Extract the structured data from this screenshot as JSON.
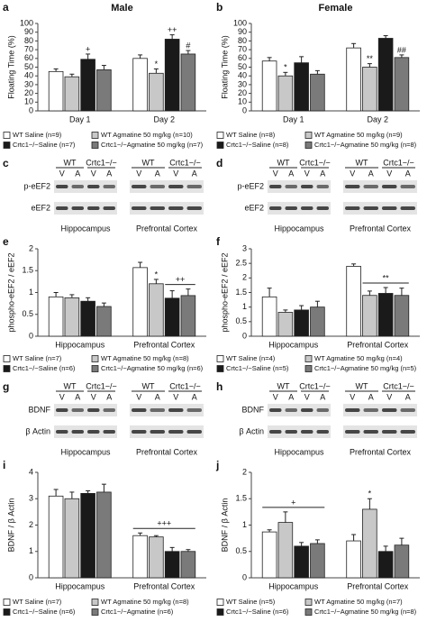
{
  "chart_data": [
    {
      "type": "bar",
      "panel": "a",
      "title": "Male",
      "ylabel": "Floating Time (%)",
      "categories": [
        "Day 1",
        "Day 2"
      ],
      "ylim": [
        0,
        100
      ],
      "yticks": [
        0,
        10,
        20,
        30,
        40,
        50,
        60,
        70,
        80,
        90,
        100
      ],
      "series": [
        {
          "name": "WT Saline (n=9)",
          "color": "#ffffff",
          "values": [
            45,
            60
          ],
          "errors": [
            3,
            4
          ]
        },
        {
          "name": "WT Agmatine 50 mg/kg (n=10)",
          "color": "#c8c8c8",
          "values": [
            39,
            43
          ],
          "errors": [
            3,
            5
          ]
        },
        {
          "name": "Crtc1−/−Saline (n=7)",
          "color": "#1a1a1a",
          "values": [
            59,
            82
          ],
          "errors": [
            6,
            5
          ]
        },
        {
          "name": "Crtc1−/−Agmatine 50 mg/kg (n=7)",
          "color": "#7a7a7a",
          "values": [
            47,
            65
          ],
          "errors": [
            5,
            4
          ]
        }
      ],
      "annotations": [
        {
          "text": "+",
          "category": 0,
          "series": [
            2
          ]
        },
        {
          "text": "*",
          "category": 1,
          "series": [
            1
          ]
        },
        {
          "text": "++",
          "category": 1,
          "series": [
            2
          ]
        },
        {
          "text": "#",
          "category": 1,
          "series": [
            3
          ]
        }
      ]
    },
    {
      "type": "bar",
      "panel": "b",
      "title": "Female",
      "ylabel": "Floating Time (%)",
      "categories": [
        "Day 1",
        "Day 2"
      ],
      "ylim": [
        0,
        100
      ],
      "yticks": [
        0,
        10,
        20,
        30,
        40,
        50,
        60,
        70,
        80,
        90,
        100
      ],
      "series": [
        {
          "name": "WT Saline (n=8)",
          "color": "#ffffff",
          "values": [
            57,
            72
          ],
          "errors": [
            4,
            5
          ]
        },
        {
          "name": "WT Agmatine 50 mg/kg (n=9)",
          "color": "#c8c8c8",
          "values": [
            40,
            50
          ],
          "errors": [
            4,
            4
          ]
        },
        {
          "name": "Crtc1−/−Saline (n=8)",
          "color": "#1a1a1a",
          "values": [
            55,
            83
          ],
          "errors": [
            7,
            3
          ]
        },
        {
          "name": "Crtc1−/−Agmatine 50 mg/kg (n=8)",
          "color": "#7a7a7a",
          "values": [
            42,
            61
          ],
          "errors": [
            4,
            3
          ]
        }
      ],
      "annotations": [
        {
          "text": "*",
          "category": 0,
          "series": [
            1
          ]
        },
        {
          "text": "**",
          "category": 1,
          "series": [
            1
          ]
        },
        {
          "text": "##",
          "category": 1,
          "series": [
            3
          ]
        }
      ]
    },
    {
      "type": "bar",
      "panel": "e",
      "ylabel": "phospho-eEF2 / eEF2",
      "categories": [
        "Hippocampus",
        "Prefrontal Cortex"
      ],
      "ylim": [
        0,
        2
      ],
      "yticks": [
        0,
        0.5,
        1,
        1.5,
        2
      ],
      "series": [
        {
          "name": "WT Saline (n=7)",
          "color": "#ffffff",
          "values": [
            0.9,
            1.57
          ],
          "errors": [
            0.1,
            0.12
          ]
        },
        {
          "name": "WT Agmatine 50 mg/kg (n=8)",
          "color": "#c8c8c8",
          "values": [
            0.88,
            1.2
          ],
          "errors": [
            0.07,
            0.1
          ]
        },
        {
          "name": "Crtc1−/−Saline (n=6)",
          "color": "#1a1a1a",
          "values": [
            0.8,
            0.87
          ],
          "errors": [
            0.08,
            0.17
          ]
        },
        {
          "name": "Crtc1−/−Agmatine 50 mg/kg (n=6)",
          "color": "#7a7a7a",
          "values": [
            0.68,
            0.93
          ],
          "errors": [
            0.08,
            0.15
          ]
        }
      ],
      "annotations": [
        {
          "text": "*",
          "category": 1,
          "series": [
            1
          ]
        },
        {
          "text": "++",
          "category": 1,
          "series": [
            2,
            3
          ]
        }
      ]
    },
    {
      "type": "bar",
      "panel": "f",
      "ylabel": "phospho-eEF2 / eEF2",
      "categories": [
        "Hippocampus",
        "Prefrontal Cortex"
      ],
      "ylim": [
        0,
        3
      ],
      "yticks": [
        0,
        0.5,
        1,
        1.5,
        2,
        2.5,
        3
      ],
      "series": [
        {
          "name": "WT Saline (n=4)",
          "color": "#ffffff",
          "values": [
            1.35,
            2.4
          ],
          "errors": [
            0.3,
            0.08
          ]
        },
        {
          "name": "WT Agmatine 50 mg/kg (n=4)",
          "color": "#c8c8c8",
          "values": [
            0.82,
            1.4
          ],
          "errors": [
            0.08,
            0.15
          ]
        },
        {
          "name": "Crtc1−/−Saline (n=5)",
          "color": "#1a1a1a",
          "values": [
            0.9,
            1.47
          ],
          "errors": [
            0.15,
            0.2
          ]
        },
        {
          "name": "Crtc1−/−Agmatine 50 mg/kg (n=5)",
          "color": "#7a7a7a",
          "values": [
            1.0,
            1.4
          ],
          "errors": [
            0.2,
            0.25
          ]
        }
      ],
      "annotations": [
        {
          "text": "**",
          "category": 1,
          "series": [
            1,
            2,
            3
          ]
        }
      ]
    },
    {
      "type": "bar",
      "panel": "i",
      "ylabel": "BDNF / β Actin",
      "categories": [
        "Hippocampus",
        "Prefrontal Cortex"
      ],
      "ylim": [
        0,
        4
      ],
      "yticks": [
        0,
        1,
        2,
        3,
        4
      ],
      "series": [
        {
          "name": "WT Saline (n=7)",
          "color": "#ffffff",
          "values": [
            3.1,
            1.6
          ],
          "errors": [
            0.25,
            0.1
          ]
        },
        {
          "name": "WT Agmatine 50 mg/kg (n=8)",
          "color": "#c8c8c8",
          "values": [
            3.0,
            1.55
          ],
          "errors": [
            0.25,
            0.05
          ]
        },
        {
          "name": "Crtc1−/−Saline (n=6)",
          "color": "#1a1a1a",
          "values": [
            3.2,
            1.0
          ],
          "errors": [
            0.1,
            0.15
          ]
        },
        {
          "name": "Crtc1−/−Agmatine (n=6)",
          "color": "#7a7a7a",
          "values": [
            3.25,
            1.0
          ],
          "errors": [
            0.3,
            0.07
          ]
        }
      ],
      "annotations": [
        {
          "text": "+++",
          "category": 1,
          "series": [
            0,
            1,
            2,
            3
          ]
        }
      ]
    },
    {
      "type": "bar",
      "panel": "j",
      "ylabel": "BDNF / β Actin",
      "categories": [
        "Hippocampus",
        "Prefrontal Cortex"
      ],
      "ylim": [
        0,
        2
      ],
      "yticks": [
        0,
        0.5,
        1,
        1.5,
        2
      ],
      "series": [
        {
          "name": "WT Saline (n=5)",
          "color": "#ffffff",
          "values": [
            0.87,
            0.7
          ],
          "errors": [
            0.04,
            0.12
          ]
        },
        {
          "name": "WT Agmatine 50 mg/kg (n=7)",
          "color": "#c8c8c8",
          "values": [
            1.05,
            1.3
          ],
          "errors": [
            0.2,
            0.2
          ]
        },
        {
          "name": "Crtc1−/−Saline (n=6)",
          "color": "#1a1a1a",
          "values": [
            0.6,
            0.5
          ],
          "errors": [
            0.07,
            0.1
          ]
        },
        {
          "name": "Crtc1−/−Agmatine 50 mg/kg (n=8)",
          "color": "#7a7a7a",
          "values": [
            0.65,
            0.62
          ],
          "errors": [
            0.07,
            0.13
          ]
        }
      ],
      "annotations": [
        {
          "text": "+",
          "category": 0,
          "series": [
            0,
            1,
            2,
            3
          ]
        },
        {
          "text": "*",
          "category": 1,
          "series": [
            1
          ]
        }
      ]
    }
  ],
  "blots": [
    {
      "panel": "c",
      "genotypes": [
        "WT",
        "Crtc1−/−",
        "WT",
        "Crtc1−/−"
      ],
      "lanes": [
        "V",
        "A",
        "V",
        "A",
        "V",
        "A",
        "V",
        "A"
      ],
      "rows": [
        "p-eEF2",
        "eEF2"
      ],
      "regions": [
        "Hippocampus",
        "Prefrontal Cortex"
      ]
    },
    {
      "panel": "d",
      "genotypes": [
        "WT",
        "Crtc1−/−",
        "WT",
        "Crtc1−/−"
      ],
      "lanes": [
        "V",
        "A",
        "V",
        "A",
        "V",
        "A",
        "V",
        "A"
      ],
      "rows": [
        "p-eEF2",
        "eEF2"
      ],
      "regions": [
        "Hippocampus",
        "Prefrontal Cortex"
      ]
    },
    {
      "panel": "g",
      "genotypes": [
        "WT",
        "Crtc1−/−",
        "WT",
        "Crtc1−/−"
      ],
      "lanes": [
        "V",
        "A",
        "V",
        "A",
        "V",
        "A",
        "V",
        "A"
      ],
      "rows": [
        "BDNF",
        "β Actin"
      ],
      "regions": [
        "Hippocampus",
        "Prefrontal Cortex"
      ]
    },
    {
      "panel": "h",
      "genotypes": [
        "WT",
        "Crtc1−/−",
        "WT",
        "Crtc1−/−"
      ],
      "lanes": [
        "V",
        "A",
        "V",
        "A",
        "V",
        "A",
        "V",
        "A"
      ],
      "rows": [
        "BDNF",
        "β Actin"
      ],
      "regions": [
        "Hippocampus",
        "Prefrontal Cortex"
      ]
    }
  ]
}
